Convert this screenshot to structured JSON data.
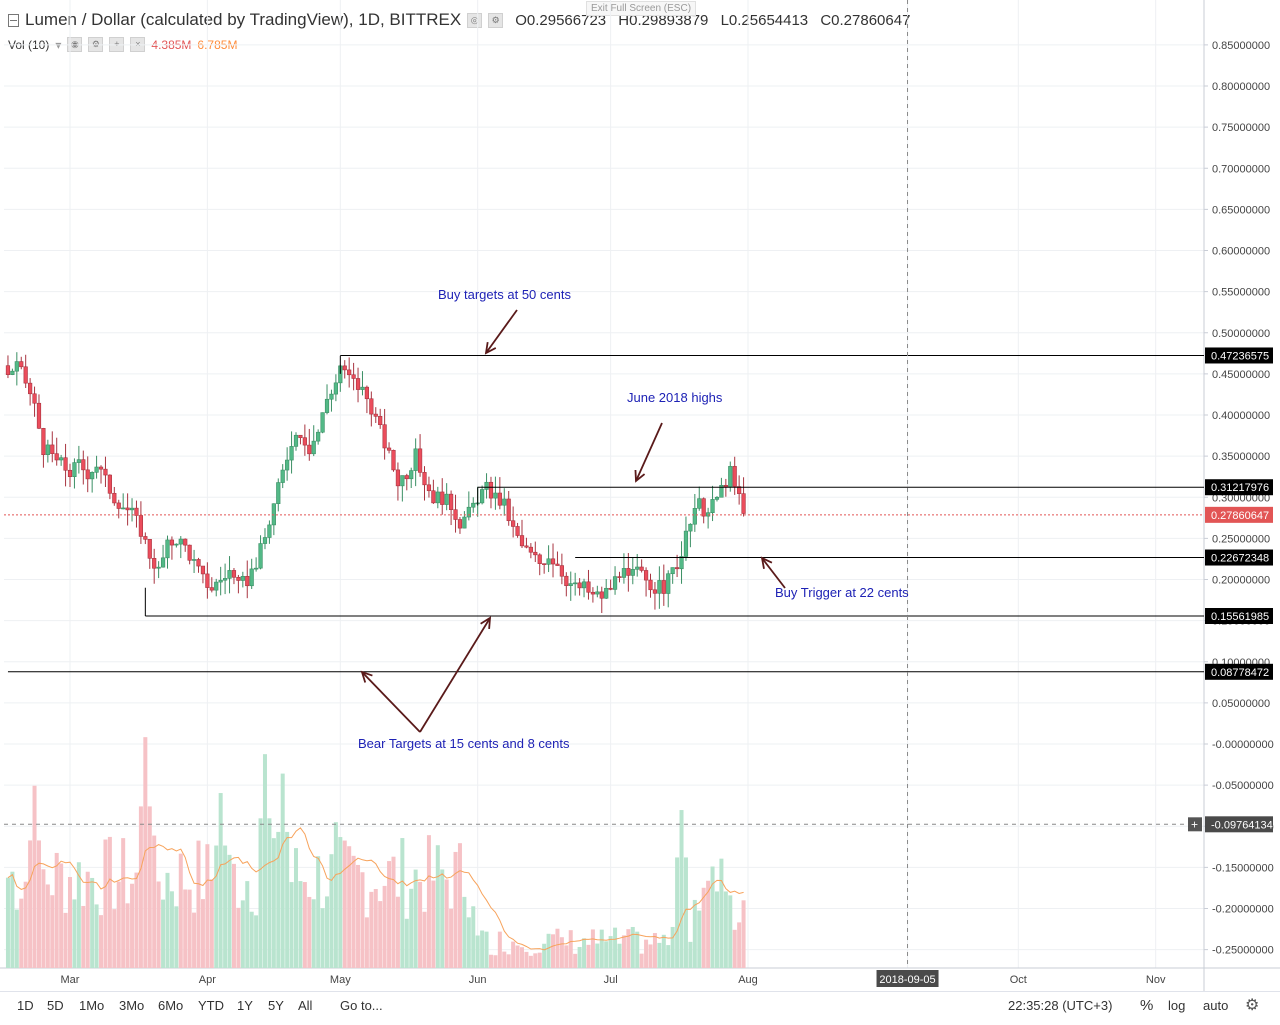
{
  "header": {
    "title": "Lumen / Dollar (calculated by TradingView), 1D, BITTREX",
    "ohlc": {
      "o_label": "O",
      "o_value": "0.29566723",
      "h_label": "H",
      "h_value": "0.29893879",
      "l_label": "L",
      "l_value": "0.25654413",
      "c_label": "C",
      "c_value": "0.27860647"
    },
    "volume_label": "Vol (10)",
    "volume_value": "4.385M",
    "volume_ma_value": "6.785M",
    "exit_fullscreen": "Exit Full Screen (ESC)"
  },
  "toolbar": {
    "ranges": [
      "1D",
      "5D",
      "1Mo",
      "3Mo",
      "6Mo",
      "YTD",
      "1Y",
      "5Y",
      "All"
    ],
    "goto": "Go to...",
    "time": "22:35:28 (UTC+3)",
    "percent": "%",
    "log": "log",
    "auto": "auto",
    "settings_icon": "gear-icon"
  },
  "chart_data": {
    "type": "candlestick",
    "title": "Lumen / Dollar (calculated by TradingView), 1D, BITTREX",
    "y_ticks": [
      "0.85000000",
      "0.80000000",
      "0.75000000",
      "0.70000000",
      "0.65000000",
      "0.60000000",
      "0.55000000",
      "0.50000000",
      "0.45000000",
      "0.40000000",
      "0.35000000",
      "0.30000000",
      "0.25000000",
      "0.20000000",
      "0.15000000",
      "0.10000000",
      "0.05000000",
      "-0.00000000",
      "-0.05000000",
      "-0.10000000",
      "-0.15000000",
      "-0.20000000",
      "-0.25000000"
    ],
    "y_tick_values": [
      0.85,
      0.8,
      0.75,
      0.7,
      0.65,
      0.6,
      0.55,
      0.5,
      0.45,
      0.4,
      0.35,
      0.3,
      0.25,
      0.2,
      0.15,
      0.1,
      0.05,
      0,
      -0.05,
      -0.1,
      -0.15,
      -0.2,
      -0.25
    ],
    "ylim": [
      -0.27,
      0.88
    ],
    "x_ticks": [
      "Mar",
      "Apr",
      "May",
      "Jun",
      "Jul",
      "Aug",
      "2018-09-05",
      "Oct",
      "Nov"
    ],
    "x_tick_days": [
      28,
      59,
      89,
      120,
      150,
      181,
      217,
      242,
      273
    ],
    "x_tick_highlight": "2018-09-05",
    "start_day": 14,
    "end_day": 304,
    "last_candle_day": 180,
    "price_levels": [
      {
        "label": "0.47236575",
        "value": 0.47236575,
        "color": "#000000",
        "from_day": 89
      },
      {
        "label": "0.31217976",
        "value": 0.31217976,
        "color": "#000000",
        "from_day": 120
      },
      {
        "label": "0.22672348",
        "value": 0.22672348,
        "color": "#000000",
        "from_day": 142
      },
      {
        "label": "0.15561985",
        "value": 0.15561985,
        "color": "#000000",
        "from_day": 45
      },
      {
        "label": "0.08778472",
        "value": 0.08778472,
        "color": "#000000",
        "from_day": 14
      }
    ],
    "last_price": {
      "label": "0.27860647",
      "value": 0.27860647,
      "color": "#e25555"
    },
    "crosshair": {
      "label": "-0.09764134",
      "value": -0.09764134,
      "day": 217
    },
    "annotations": [
      {
        "text": "Buy targets at 50 cents"
      },
      {
        "text": "June 2018 highs"
      },
      {
        "text": "Buy Trigger at 22 cents"
      },
      {
        "text": "Bear Targets at 15 cents and 8 cents"
      }
    ],
    "close_anchors": [
      [
        14,
        0.45
      ],
      [
        16,
        0.46
      ],
      [
        18,
        0.44
      ],
      [
        20,
        0.41
      ],
      [
        22,
        0.36
      ],
      [
        24,
        0.35
      ],
      [
        26,
        0.34
      ],
      [
        28,
        0.33
      ],
      [
        30,
        0.34
      ],
      [
        32,
        0.33
      ],
      [
        34,
        0.34
      ],
      [
        36,
        0.32
      ],
      [
        38,
        0.3
      ],
      [
        40,
        0.29
      ],
      [
        42,
        0.28
      ],
      [
        44,
        0.26
      ],
      [
        46,
        0.23
      ],
      [
        48,
        0.21
      ],
      [
        50,
        0.24
      ],
      [
        52,
        0.25
      ],
      [
        54,
        0.24
      ],
      [
        56,
        0.22
      ],
      [
        58,
        0.2
      ],
      [
        60,
        0.19
      ],
      [
        62,
        0.2
      ],
      [
        64,
        0.21
      ],
      [
        66,
        0.19
      ],
      [
        68,
        0.2
      ],
      [
        70,
        0.22
      ],
      [
        72,
        0.25
      ],
      [
        74,
        0.29
      ],
      [
        76,
        0.33
      ],
      [
        78,
        0.37
      ],
      [
        80,
        0.38
      ],
      [
        82,
        0.36
      ],
      [
        84,
        0.38
      ],
      [
        86,
        0.42
      ],
      [
        88,
        0.44
      ],
      [
        89,
        0.46
      ],
      [
        90,
        0.45
      ],
      [
        92,
        0.44
      ],
      [
        94,
        0.43
      ],
      [
        96,
        0.41
      ],
      [
        98,
        0.38
      ],
      [
        100,
        0.35
      ],
      [
        102,
        0.32
      ],
      [
        104,
        0.33
      ],
      [
        106,
        0.35
      ],
      [
        108,
        0.32
      ],
      [
        110,
        0.3
      ],
      [
        112,
        0.3
      ],
      [
        114,
        0.29
      ],
      [
        116,
        0.27
      ],
      [
        118,
        0.28
      ],
      [
        120,
        0.3
      ],
      [
        122,
        0.31
      ],
      [
        124,
        0.3
      ],
      [
        126,
        0.29
      ],
      [
        128,
        0.26
      ],
      [
        130,
        0.24
      ],
      [
        132,
        0.23
      ],
      [
        134,
        0.22
      ],
      [
        136,
        0.23
      ],
      [
        138,
        0.22
      ],
      [
        140,
        0.2
      ],
      [
        142,
        0.19
      ],
      [
        144,
        0.19
      ],
      [
        146,
        0.18
      ],
      [
        148,
        0.18
      ],
      [
        150,
        0.19
      ],
      [
        152,
        0.21
      ],
      [
        154,
        0.2
      ],
      [
        156,
        0.21
      ],
      [
        158,
        0.2
      ],
      [
        160,
        0.19
      ],
      [
        162,
        0.19
      ],
      [
        164,
        0.21
      ],
      [
        166,
        0.23
      ],
      [
        168,
        0.27
      ],
      [
        170,
        0.29
      ],
      [
        172,
        0.28
      ],
      [
        174,
        0.3
      ],
      [
        176,
        0.32
      ],
      [
        177,
        0.33
      ],
      [
        178,
        0.31
      ],
      [
        179,
        0.3
      ],
      [
        180,
        0.279
      ]
    ],
    "volume_scale": "relative",
    "volume_peaks": [
      {
        "day": 45,
        "rel": 0.95
      },
      {
        "day": 62,
        "rel": 0.72
      },
      {
        "day": 72,
        "rel": 0.88
      },
      {
        "day": 76,
        "rel": 0.8
      },
      {
        "day": 88,
        "rel": 0.6
      },
      {
        "day": 20,
        "rel": 0.75
      },
      {
        "day": 166,
        "rel": 0.65
      },
      {
        "day": 175,
        "rel": 0.45
      }
    ]
  }
}
